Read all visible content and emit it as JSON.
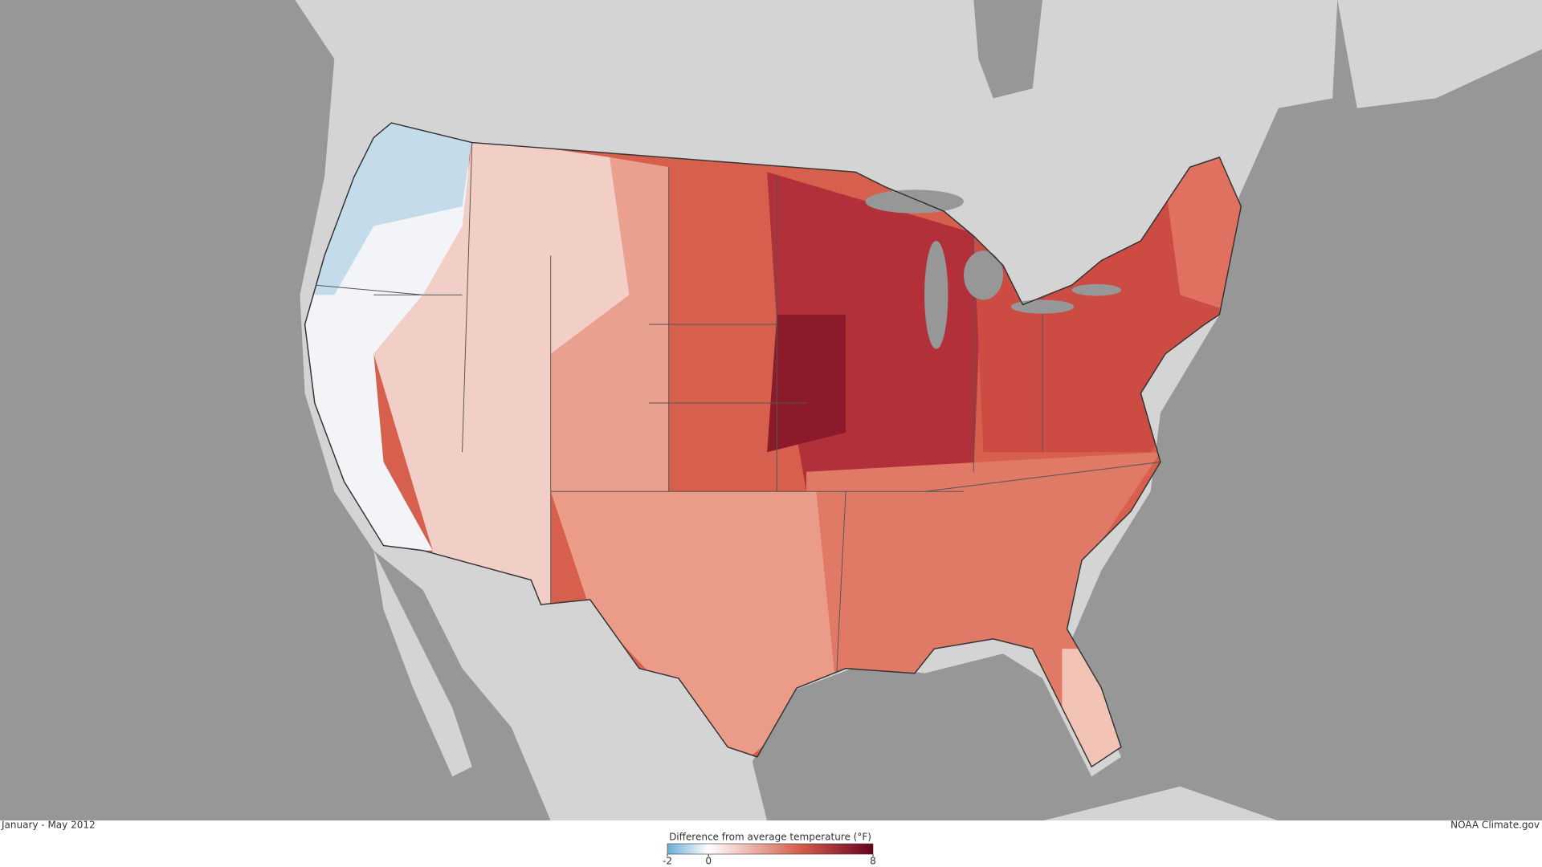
{
  "caption": "January - May 2012",
  "credit": "NOAA Climate.gov",
  "legend": {
    "title": "Difference from average temperature (°F)",
    "range": [
      -2,
      8
    ],
    "ticks": [
      -2,
      0,
      8
    ],
    "colors": {
      "low": "#6baed6",
      "zero": "#ffffff",
      "high": "#67001f"
    }
  }
}
